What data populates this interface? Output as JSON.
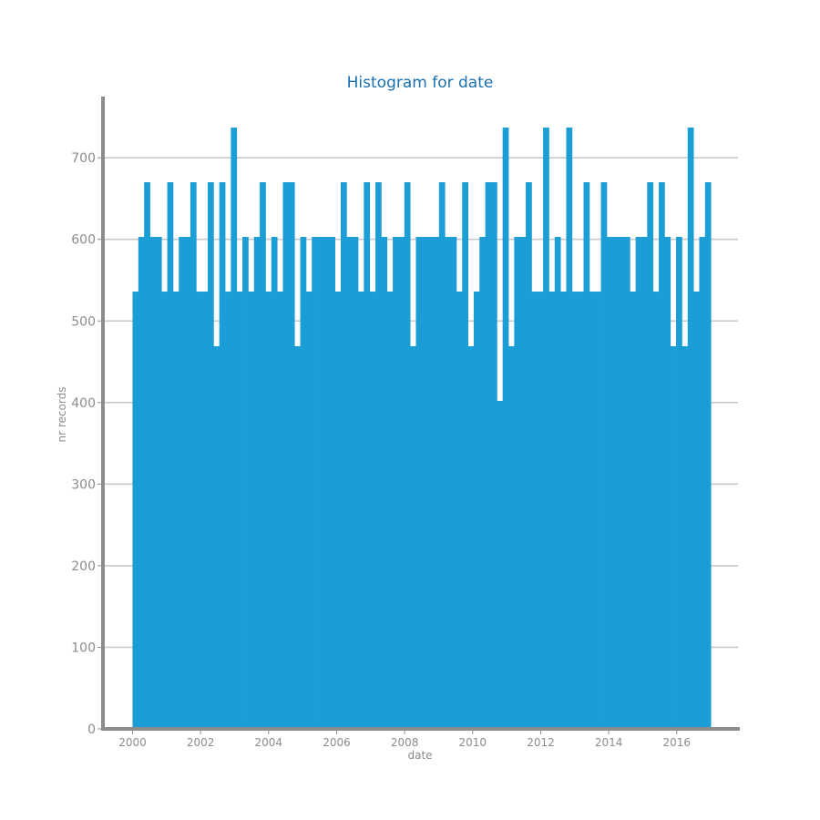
{
  "chart_data": {
    "type": "bar",
    "title": "Histogram for date",
    "xlabel": "date",
    "ylabel": "nr records",
    "xlim": [
      1999.13,
      2017.8
    ],
    "ylim": [
      0,
      775
    ],
    "xticks": [
      2000,
      2002,
      2004,
      2006,
      2008,
      2010,
      2012,
      2014,
      2016
    ],
    "yticks": [
      0,
      100,
      200,
      300,
      400,
      500,
      600,
      700
    ],
    "grid": true,
    "bar_color": "#1b9dd6",
    "bins": {
      "start": 2000.0,
      "width": 0.17,
      "counts": [
        536,
        603,
        670,
        603,
        603,
        536,
        670,
        536,
        603,
        603,
        670,
        536,
        536,
        670,
        469,
        670,
        536,
        737,
        536,
        603,
        536,
        603,
        670,
        536,
        603,
        536,
        670,
        670,
        469,
        603,
        536,
        603,
        603,
        603,
        603,
        536,
        670,
        603,
        603,
        536,
        670,
        536,
        670,
        603,
        536,
        603,
        603,
        670,
        469,
        603,
        603,
        603,
        603,
        670,
        603,
        603,
        536,
        670,
        469,
        536,
        603,
        670,
        670,
        402,
        737,
        469,
        603,
        603,
        670,
        536,
        536,
        737,
        536,
        603,
        536,
        737,
        536,
        536,
        670,
        536,
        536,
        670,
        603,
        603,
        603,
        603,
        536,
        603,
        603,
        670,
        536,
        670,
        603,
        469,
        603,
        469,
        737,
        536,
        603,
        670
      ]
    }
  }
}
